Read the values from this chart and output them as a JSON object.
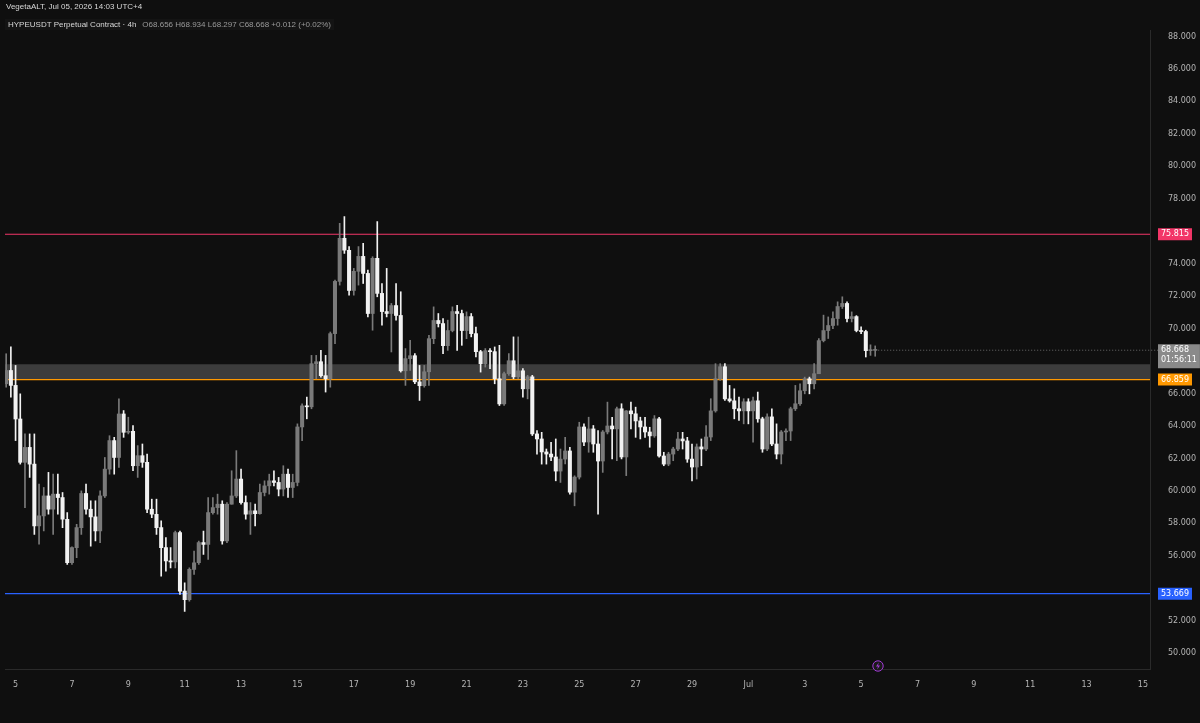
{
  "chart_data": {
    "type": "candlestick",
    "title": "HYPEUSDT Perpetual Contract · 4h",
    "subtitle": "O68.656 H68.934 L68.297 C68.668 +0.012 (+0.02%)",
    "annotations": [
      "VegetaALT, Jul 05, 2026 14:03 UTC+4",
      {
        "text": "68.668",
        "x": "2026-07-05T12:00",
        "y": 68.668
      },
      "01:56:11"
    ],
    "x": [
      "2026-06-04T16:00",
      "2026-06-04T20:00",
      "2026-06-05T00:00",
      "2026-06-05T04:00",
      "2026-06-05T08:00",
      "2026-06-05T12:00",
      "2026-06-05T16:00",
      "2026-06-05T20:00",
      "2026-06-06T00:00",
      "2026-06-06T04:00",
      "2026-06-06T08:00",
      "2026-06-06T12:00",
      "2026-06-06T16:00",
      "2026-06-06T20:00",
      "2026-06-07T00:00",
      "2026-06-07T04:00",
      "2026-06-07T08:00",
      "2026-06-07T12:00",
      "2026-06-07T16:00",
      "2026-06-07T20:00",
      "2026-06-08T00:00",
      "2026-06-08T04:00",
      "2026-06-08T08:00",
      "2026-06-08T12:00",
      "2026-06-08T16:00",
      "2026-06-08T20:00",
      "2026-06-09T00:00",
      "2026-06-09T04:00",
      "2026-06-09T08:00",
      "2026-06-09T12:00",
      "2026-06-09T16:00",
      "2026-06-09T20:00",
      "2026-06-10T00:00",
      "2026-06-10T04:00",
      "2026-06-10T08:00",
      "2026-06-10T12:00",
      "2026-06-10T16:00",
      "2026-06-10T20:00",
      "2026-06-11T00:00",
      "2026-06-11T04:00",
      "2026-06-11T08:00",
      "2026-06-11T12:00",
      "2026-06-11T16:00",
      "2026-06-11T20:00",
      "2026-06-12T00:00",
      "2026-06-12T04:00",
      "2026-06-12T08:00",
      "2026-06-12T12:00",
      "2026-06-12T16:00",
      "2026-06-12T20:00",
      "2026-06-13T00:00",
      "2026-06-13T04:00",
      "2026-06-13T08:00",
      "2026-06-13T12:00",
      "2026-06-13T16:00",
      "2026-06-13T20:00",
      "2026-06-14T00:00",
      "2026-06-14T04:00",
      "2026-06-14T08:00",
      "2026-06-14T12:00",
      "2026-06-14T16:00",
      "2026-06-14T20:00",
      "2026-06-15T00:00",
      "2026-06-15T04:00",
      "2026-06-15T08:00",
      "2026-06-15T12:00",
      "2026-06-15T16:00",
      "2026-06-15T20:00",
      "2026-06-16T00:00",
      "2026-06-16T04:00",
      "2026-06-16T08:00",
      "2026-06-16T12:00",
      "2026-06-16T16:00",
      "2026-06-16T20:00",
      "2026-06-17T00:00",
      "2026-06-17T04:00",
      "2026-06-17T08:00",
      "2026-06-17T12:00",
      "2026-06-17T16:00",
      "2026-06-17T20:00",
      "2026-06-18T00:00",
      "2026-06-18T04:00",
      "2026-06-18T08:00",
      "2026-06-18T12:00",
      "2026-06-18T16:00",
      "2026-06-18T20:00",
      "2026-06-19T00:00",
      "2026-06-19T04:00",
      "2026-06-19T08:00",
      "2026-06-19T12:00",
      "2026-06-19T16:00",
      "2026-06-19T20:00",
      "2026-06-20T00:00",
      "2026-06-20T04:00",
      "2026-06-20T08:00",
      "2026-06-20T12:00",
      "2026-06-20T16:00",
      "2026-06-20T20:00",
      "2026-06-21T00:00",
      "2026-06-21T04:00",
      "2026-06-21T08:00",
      "2026-06-21T12:00",
      "2026-06-21T16:00",
      "2026-06-21T20:00",
      "2026-06-22T00:00",
      "2026-06-22T04:00",
      "2026-06-22T08:00",
      "2026-06-22T12:00",
      "2026-06-22T16:00",
      "2026-06-22T20:00",
      "2026-06-23T00:00",
      "2026-06-23T04:00",
      "2026-06-23T08:00",
      "2026-06-23T12:00",
      "2026-06-23T16:00",
      "2026-06-23T20:00",
      "2026-06-24T00:00",
      "2026-06-24T04:00",
      "2026-06-24T08:00",
      "2026-06-24T12:00",
      "2026-06-24T16:00",
      "2026-06-24T20:00",
      "2026-06-25T00:00",
      "2026-06-25T04:00",
      "2026-06-25T08:00",
      "2026-06-25T12:00",
      "2026-06-25T16:00",
      "2026-06-25T20:00",
      "2026-06-26T00:00",
      "2026-06-26T04:00",
      "2026-06-26T08:00",
      "2026-06-26T12:00",
      "2026-06-26T16:00",
      "2026-06-26T20:00",
      "2026-06-27T00:00",
      "2026-06-27T04:00",
      "2026-06-27T08:00",
      "2026-06-27T12:00",
      "2026-06-27T16:00",
      "2026-06-27T20:00",
      "2026-06-28T00:00",
      "2026-06-28T04:00",
      "2026-06-28T08:00",
      "2026-06-28T12:00",
      "2026-06-28T16:00",
      "2026-06-28T20:00",
      "2026-06-29T00:00",
      "2026-06-29T04:00",
      "2026-06-29T08:00",
      "2026-06-29T12:00",
      "2026-06-29T16:00",
      "2026-06-29T20:00",
      "2026-06-30T00:00",
      "2026-06-30T04:00",
      "2026-06-30T08:00",
      "2026-06-30T12:00",
      "2026-06-30T16:00",
      "2026-06-30T20:00",
      "2026-07-01T00:00",
      "2026-07-01T04:00",
      "2026-07-01T08:00",
      "2026-07-01T12:00",
      "2026-07-01T16:00",
      "2026-07-01T20:00",
      "2026-07-02T00:00",
      "2026-07-02T04:00",
      "2026-07-02T08:00",
      "2026-07-02T12:00",
      "2026-07-02T16:00",
      "2026-07-02T20:00",
      "2026-07-03T00:00",
      "2026-07-03T04:00",
      "2026-07-03T08:00",
      "2026-07-03T12:00",
      "2026-07-03T16:00",
      "2026-07-03T20:00",
      "2026-07-04T00:00",
      "2026-07-04T04:00",
      "2026-07-04T08:00",
      "2026-07-04T12:00",
      "2026-07-04T16:00",
      "2026-07-04T20:00",
      "2026-07-05T00:00",
      "2026-07-05T04:00",
      "2026-07-05T08:00",
      "2026-07-05T12:00"
    ],
    "ohlc": [
      [
        66.6,
        68.45,
        66.39,
        67.42
      ],
      [
        67.42,
        68.87,
        65.77,
        66.5
      ],
      [
        66.5,
        67.73,
        63.1,
        64.43
      ],
      [
        64.43,
        65.98,
        61.65,
        61.76
      ],
      [
        61.76,
        63.51,
        58.97,
        62.68
      ],
      [
        62.68,
        63.51,
        60.83,
        61.65
      ],
      [
        61.65,
        63.51,
        57.32,
        57.84
      ],
      [
        57.84,
        60.42,
        56.71,
        58.46
      ],
      [
        58.46,
        60.21,
        57.53,
        59.69
      ],
      [
        59.69,
        61.14,
        58.56,
        58.87
      ],
      [
        58.87,
        61.03,
        57.32,
        59.8
      ],
      [
        59.8,
        61.03,
        58.56,
        59.59
      ],
      [
        59.59,
        59.9,
        57.74,
        58.25
      ],
      [
        58.25,
        58.66,
        55.47,
        55.57
      ],
      [
        55.57,
        56.55,
        55.47,
        56.5
      ],
      [
        56.5,
        57.94,
        55.88,
        57.74
      ],
      [
        57.74,
        60.0,
        57.32,
        59.84
      ],
      [
        59.84,
        60.42,
        58.56,
        58.87
      ],
      [
        58.87,
        59.39,
        56.6,
        58.4
      ],
      [
        58.4,
        59.39,
        56.91,
        57.53
      ],
      [
        57.53,
        60.0,
        56.81,
        59.69
      ],
      [
        59.69,
        62.06,
        59.59,
        61.34
      ],
      [
        61.34,
        63.4,
        61.03,
        63.1
      ],
      [
        63.1,
        63.3,
        61.03,
        62.06
      ],
      [
        62.06,
        65.67,
        61.45,
        64.74
      ],
      [
        64.74,
        64.95,
        63.3,
        63.61
      ],
      [
        63.61,
        64.54,
        63.51,
        63.67
      ],
      [
        63.67,
        64.02,
        61.24,
        61.55
      ],
      [
        61.55,
        62.79,
        60.83,
        62.17
      ],
      [
        62.17,
        62.89,
        61.45,
        61.76
      ],
      [
        61.76,
        62.27,
        58.66,
        58.87
      ],
      [
        58.87,
        59.49,
        58.35,
        58.56
      ],
      [
        58.56,
        59.49,
        57.32,
        57.74
      ],
      [
        57.74,
        58.15,
        54.75,
        56.5
      ],
      [
        56.5,
        57.12,
        55.06,
        55.68
      ],
      [
        55.68,
        56.5,
        55.26,
        55.63
      ],
      [
        55.63,
        57.53,
        55.26,
        57.43
      ],
      [
        57.43,
        57.53,
        53.62,
        53.82
      ],
      [
        53.82,
        54.34,
        52.58,
        53.3
      ],
      [
        53.3,
        55.26,
        53.2,
        55.16
      ],
      [
        55.16,
        56.29,
        54.85,
        55.57
      ],
      [
        55.57,
        56.91,
        55.47,
        56.81
      ],
      [
        56.81,
        57.53,
        56.09,
        56.7
      ],
      [
        56.7,
        59.59,
        55.78,
        58.66
      ],
      [
        58.66,
        59.59,
        58.56,
        58.97
      ],
      [
        58.97,
        59.8,
        58.56,
        59.18
      ],
      [
        59.18,
        59.39,
        56.71,
        56.91
      ],
      [
        56.91,
        59.28,
        56.81,
        59.18
      ],
      [
        59.18,
        61.24,
        59.18,
        59.69
      ],
      [
        59.69,
        62.48,
        59.59,
        60.73
      ],
      [
        60.73,
        61.34,
        59.18,
        59.28
      ],
      [
        59.28,
        59.69,
        58.25,
        58.56
      ],
      [
        58.56,
        59.28,
        57.32,
        58.77
      ],
      [
        58.77,
        59.18,
        57.84,
        58.6
      ],
      [
        58.6,
        60.42,
        58.56,
        59.9
      ],
      [
        59.9,
        60.62,
        59.69,
        60.31
      ],
      [
        60.31,
        61.03,
        59.8,
        60.62
      ],
      [
        60.62,
        61.24,
        60.31,
        60.52
      ],
      [
        60.52,
        60.83,
        59.69,
        60.11
      ],
      [
        60.11,
        61.55,
        59.69,
        61.03
      ],
      [
        61.03,
        61.34,
        59.59,
        60.21
      ],
      [
        60.21,
        61.03,
        59.59,
        60.52
      ],
      [
        60.52,
        64.13,
        60.31,
        63.94
      ],
      [
        63.94,
        65.36,
        63.1,
        65.24
      ],
      [
        65.24,
        65.78,
        64.44,
        65.18
      ],
      [
        65.18,
        68.35,
        65.06,
        67.84
      ],
      [
        67.84,
        68.35,
        66.91,
        67.96
      ],
      [
        67.96,
        68.66,
        67.01,
        67.1
      ],
      [
        67.1,
        68.35,
        66.09,
        66.91
      ],
      [
        66.91,
        69.79,
        66.39,
        69.69
      ],
      [
        69.69,
        72.99,
        69.07,
        72.91
      ],
      [
        72.91,
        76.49,
        72.68,
        75.57
      ],
      [
        75.57,
        76.91,
        74.64,
        74.83
      ],
      [
        74.83,
        75.05,
        72.06,
        72.35
      ],
      [
        72.35,
        73.71,
        72.06,
        73.53
      ],
      [
        73.53,
        75.05,
        72.68,
        74.45
      ],
      [
        74.45,
        75.26,
        72.78,
        73.4
      ],
      [
        73.4,
        73.61,
        70.72,
        70.93
      ],
      [
        70.93,
        74.43,
        69.9,
        74.33
      ],
      [
        74.33,
        76.6,
        71.96,
        72.17
      ],
      [
        72.17,
        72.78,
        70.21,
        71.05
      ],
      [
        71.05,
        73.71,
        70.72,
        70.93
      ],
      [
        70.93,
        71.55,
        68.56,
        71.42
      ],
      [
        71.42,
        72.78,
        70.52,
        70.81
      ],
      [
        70.81,
        72.27,
        67.32,
        67.4
      ],
      [
        67.4,
        68.77,
        66.5,
        68.15
      ],
      [
        68.15,
        69.28,
        67.42,
        68.33
      ],
      [
        68.33,
        68.46,
        66.6,
        66.72
      ],
      [
        66.72,
        67.73,
        65.57,
        66.48
      ],
      [
        66.48,
        67.73,
        66.39,
        67.34
      ],
      [
        67.34,
        69.59,
        66.5,
        69.38
      ],
      [
        69.38,
        71.34,
        69.07,
        70.5
      ],
      [
        70.5,
        70.93,
        70.1,
        70.31
      ],
      [
        70.31,
        70.62,
        68.46,
        68.95
      ],
      [
        68.95,
        70.52,
        68.66,
        69.88
      ],
      [
        69.88,
        71.34,
        69.8,
        71.05
      ],
      [
        71.05,
        71.44,
        68.66,
        70.93
      ],
      [
        70.93,
        71.14,
        68.97,
        69.88
      ],
      [
        69.88,
        71.03,
        69.38,
        70.74
      ],
      [
        70.74,
        70.93,
        69.49,
        69.69
      ],
      [
        69.69,
        70.1,
        68.25,
        68.58
      ],
      [
        68.58,
        68.66,
        67.32,
        67.84
      ],
      [
        67.84,
        68.77,
        67.63,
        68.64
      ],
      [
        68.64,
        68.77,
        67.53,
        68.58
      ],
      [
        68.58,
        68.87,
        66.6,
        66.91
      ],
      [
        66.91,
        68.97,
        65.26,
        65.36
      ],
      [
        65.36,
        67.32,
        65.26,
        67.22
      ],
      [
        67.22,
        68.46,
        67.12,
        68.02
      ],
      [
        68.02,
        69.49,
        66.91,
        67.03
      ],
      [
        67.03,
        69.49,
        66.91,
        67.4
      ],
      [
        67.4,
        67.53,
        65.78,
        66.29
      ],
      [
        66.29,
        67.12,
        65.67,
        67.03
      ],
      [
        67.03,
        67.12,
        63.41,
        63.51
      ],
      [
        63.51,
        63.72,
        62.27,
        63.2
      ],
      [
        63.2,
        63.61,
        61.65,
        62.4
      ],
      [
        62.4,
        62.58,
        61.65,
        62.27
      ],
      [
        62.27,
        62.99,
        61.86,
        62.09
      ],
      [
        62.09,
        63.2,
        60.62,
        61.22
      ],
      [
        61.22,
        62.58,
        60.52,
        61.96
      ],
      [
        61.96,
        63.3,
        61.66,
        62.46
      ],
      [
        62.46,
        62.69,
        59.8,
        59.92
      ],
      [
        59.92,
        60.93,
        59.08,
        60.85
      ],
      [
        60.85,
        64.23,
        60.73,
        63.94
      ],
      [
        63.94,
        64.13,
        62.79,
        63.01
      ],
      [
        63.01,
        64.54,
        62.38,
        63.82
      ],
      [
        63.82,
        64.03,
        62.38,
        62.89
      ],
      [
        62.89,
        63.72,
        58.56,
        61.84
      ],
      [
        61.84,
        63.72,
        61.14,
        63.63
      ],
      [
        63.63,
        65.47,
        63.51,
        64.0
      ],
      [
        64.0,
        64.54,
        61.97,
        63.82
      ],
      [
        63.82,
        65.16,
        61.86,
        65.06
      ],
      [
        65.06,
        65.37,
        61.97,
        62.09
      ],
      [
        62.09,
        64.95,
        60.94,
        64.93
      ],
      [
        64.93,
        65.47,
        63.82,
        64.75
      ],
      [
        64.75,
        65.16,
        63.3,
        64.31
      ],
      [
        64.31,
        64.54,
        63.2,
        63.94
      ],
      [
        63.94,
        64.54,
        63.3,
        63.63
      ],
      [
        63.63,
        63.92,
        62.69,
        63.39
      ],
      [
        63.39,
        64.64,
        63.3,
        64.44
      ],
      [
        64.44,
        64.54,
        62.07,
        62.15
      ],
      [
        62.15,
        62.38,
        61.55,
        61.65
      ],
      [
        61.65,
        62.38,
        61.55,
        62.27
      ],
      [
        62.27,
        62.69,
        61.86,
        62.58
      ],
      [
        62.58,
        63.61,
        62.48,
        63.2
      ],
      [
        63.2,
        63.61,
        62.58,
        63.08
      ],
      [
        63.08,
        63.3,
        61.76,
        61.96
      ],
      [
        61.96,
        62.89,
        60.62,
        61.47
      ],
      [
        61.47,
        62.89,
        60.73,
        62.71
      ],
      [
        62.71,
        63.2,
        61.55,
        62.58
      ],
      [
        62.58,
        64.03,
        62.48,
        63.32
      ],
      [
        63.32,
        65.68,
        63.1,
        64.93
      ],
      [
        64.93,
        67.84,
        64.85,
        66.91
      ],
      [
        66.91,
        67.84,
        66.81,
        67.65
      ],
      [
        67.65,
        67.84,
        65.57,
        65.67
      ],
      [
        65.67,
        66.5,
        65.47,
        65.55
      ],
      [
        65.55,
        66.29,
        64.44,
        65.06
      ],
      [
        65.06,
        65.78,
        64.34,
        64.93
      ],
      [
        64.93,
        65.68,
        64.13,
        65.49
      ],
      [
        65.49,
        65.68,
        64.13,
        64.93
      ],
      [
        64.93,
        65.78,
        63.0,
        65.55
      ],
      [
        65.55,
        66.09,
        64.23,
        64.44
      ],
      [
        64.44,
        64.54,
        62.38,
        62.58
      ],
      [
        62.58,
        64.75,
        62.48,
        64.56
      ],
      [
        64.56,
        65.06,
        62.79,
        62.89
      ],
      [
        62.89,
        64.13,
        61.97,
        62.27
      ],
      [
        62.27,
        63.72,
        61.66,
        63.63
      ],
      [
        63.63,
        63.82,
        63.1,
        63.69
      ],
      [
        63.69,
        65.16,
        63.1,
        65.06
      ],
      [
        65.06,
        66.5,
        64.95,
        65.37
      ],
      [
        65.37,
        66.6,
        65.26,
        66.17
      ],
      [
        66.17,
        67.01,
        65.98,
        66.91
      ],
      [
        66.91,
        67.01,
        65.98,
        66.6
      ],
      [
        66.6,
        67.84,
        66.29,
        67.22
      ],
      [
        67.22,
        69.38,
        67.22,
        69.26
      ],
      [
        69.26,
        70.83,
        69.18,
        69.88
      ],
      [
        69.88,
        70.72,
        69.39,
        70.19
      ],
      [
        70.19,
        71.03,
        70.0,
        70.62
      ],
      [
        70.62,
        71.65,
        70.21,
        71.36
      ],
      [
        71.36,
        71.96,
        71.24,
        71.55
      ],
      [
        71.55,
        71.65,
        70.41,
        70.62
      ],
      [
        70.62,
        71.03,
        70.41,
        70.74
      ],
      [
        70.74,
        70.8,
        69.8,
        69.88
      ],
      [
        69.88,
        70.11,
        69.69,
        69.82
      ],
      [
        69.82,
        69.9,
        68.25,
        68.64
      ],
      [
        68.64,
        69.0,
        68.35,
        68.656
      ],
      [
        68.656,
        68.934,
        68.297,
        68.668
      ]
    ],
    "xlim": [
      "2026-06-04T15:00",
      "2026-07-15T06:00"
    ],
    "xticks": [
      {
        "value": "2026-06-05",
        "label": "5"
      },
      {
        "value": "2026-06-07",
        "label": "7"
      },
      {
        "value": "2026-06-09",
        "label": "9"
      },
      {
        "value": "2026-06-11",
        "label": "11"
      },
      {
        "value": "2026-06-13",
        "label": "13"
      },
      {
        "value": "2026-06-15",
        "label": "15"
      },
      {
        "value": "2026-06-17",
        "label": "17"
      },
      {
        "value": "2026-06-19",
        "label": "19"
      },
      {
        "value": "2026-06-21",
        "label": "21"
      },
      {
        "value": "2026-06-23",
        "label": "23"
      },
      {
        "value": "2026-06-25",
        "label": "25"
      },
      {
        "value": "2026-06-27",
        "label": "27"
      },
      {
        "value": "2026-06-29",
        "label": "29"
      },
      {
        "value": "2026-07-01",
        "label": "Jul"
      },
      {
        "value": "2026-07-03",
        "label": "3"
      },
      {
        "value": "2026-07-05",
        "label": "5"
      },
      {
        "value": "2026-07-07",
        "label": "7"
      },
      {
        "value": "2026-07-09",
        "label": "9"
      },
      {
        "value": "2026-07-11",
        "label": "11"
      },
      {
        "value": "2026-07-13",
        "label": "13"
      },
      {
        "value": "2026-07-15",
        "label": "15"
      }
    ],
    "ylim": [
      49,
      88.4
    ],
    "yticks": [
      {
        "value": 50,
        "label": "50.000"
      },
      {
        "value": 52,
        "label": "52.000"
      },
      {
        "value": 56,
        "label": "56.000"
      },
      {
        "value": 58,
        "label": "58.000"
      },
      {
        "value": 60,
        "label": "60.000"
      },
      {
        "value": 62,
        "label": "62.000"
      },
      {
        "value": 64,
        "label": "64.000"
      },
      {
        "value": 66,
        "label": "66.000"
      },
      {
        "value": 70,
        "label": "70.000"
      },
      {
        "value": 72,
        "label": "72.000"
      },
      {
        "value": 74,
        "label": "74.000"
      },
      {
        "value": 78,
        "label": "78.000"
      },
      {
        "value": 80,
        "label": "80.000"
      },
      {
        "value": 82,
        "label": "82.000"
      },
      {
        "value": 84,
        "label": "84.000"
      },
      {
        "value": 86,
        "label": "86.000"
      },
      {
        "value": 88,
        "label": "88.000"
      }
    ],
    "ref_lines": [
      {
        "axis": "y",
        "value": 75.815,
        "label": "75.815",
        "color": "#f23668"
      },
      {
        "axis": "y",
        "value": 66.859,
        "label": "66.859",
        "color": "#ff9800"
      },
      {
        "axis": "y",
        "value": 53.669,
        "label": "53.669",
        "color": "#2962ff"
      }
    ],
    "bands": [
      {
        "axis": "y",
        "from": 66.859,
        "to": 67.8,
        "color": "#3c3c3c"
      }
    ],
    "grid": false,
    "legend": false
  }
}
